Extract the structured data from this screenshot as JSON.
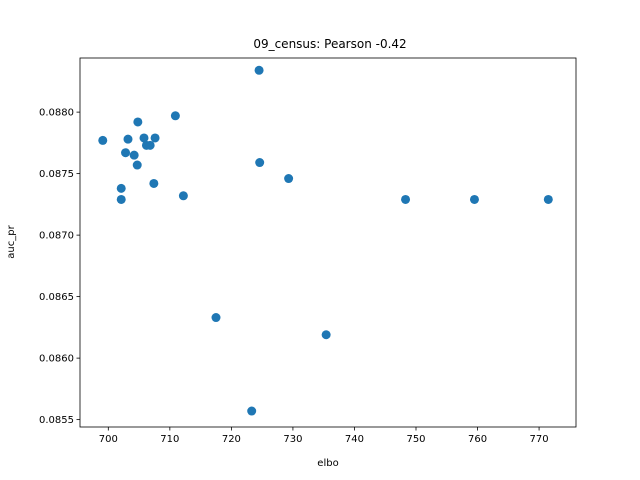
{
  "chart_data": {
    "type": "scatter",
    "title": "09_census: Pearson -0.42",
    "xlabel": "elbo",
    "ylabel": "auc_pr",
    "xlim": [
      695.4,
      776.0
    ],
    "ylim": [
      0.08544,
      0.08844
    ],
    "xticks": [
      700,
      710,
      720,
      730,
      740,
      750,
      760,
      770
    ],
    "yticks": [
      0.0855,
      0.086,
      0.0865,
      0.087,
      0.0875,
      0.088
    ],
    "xtick_labels": [
      "700",
      "710",
      "720",
      "730",
      "740",
      "750",
      "760",
      "770"
    ],
    "ytick_labels": [
      "0.0855",
      "0.0860",
      "0.0865",
      "0.0870",
      "0.0875",
      "0.0880"
    ],
    "grid": false,
    "marker_color": "#1f77b4",
    "points": [
      {
        "x": 699.1,
        "y": 0.08777
      },
      {
        "x": 702.1,
        "y": 0.08738
      },
      {
        "x": 702.1,
        "y": 0.08729
      },
      {
        "x": 702.8,
        "y": 0.08767
      },
      {
        "x": 703.2,
        "y": 0.08778
      },
      {
        "x": 704.2,
        "y": 0.08765
      },
      {
        "x": 704.7,
        "y": 0.08757
      },
      {
        "x": 704.8,
        "y": 0.08792
      },
      {
        "x": 705.8,
        "y": 0.08779
      },
      {
        "x": 706.2,
        "y": 0.08773
      },
      {
        "x": 706.8,
        "y": 0.08773
      },
      {
        "x": 707.4,
        "y": 0.08742
      },
      {
        "x": 707.6,
        "y": 0.08779
      },
      {
        "x": 710.9,
        "y": 0.08797
      },
      {
        "x": 712.2,
        "y": 0.08732
      },
      {
        "x": 717.5,
        "y": 0.08633
      },
      {
        "x": 723.3,
        "y": 0.08557
      },
      {
        "x": 724.5,
        "y": 0.08834
      },
      {
        "x": 724.6,
        "y": 0.08759
      },
      {
        "x": 729.3,
        "y": 0.08746
      },
      {
        "x": 735.4,
        "y": 0.08619
      },
      {
        "x": 748.3,
        "y": 0.08729
      },
      {
        "x": 759.5,
        "y": 0.08729
      },
      {
        "x": 771.5,
        "y": 0.08729
      }
    ]
  }
}
